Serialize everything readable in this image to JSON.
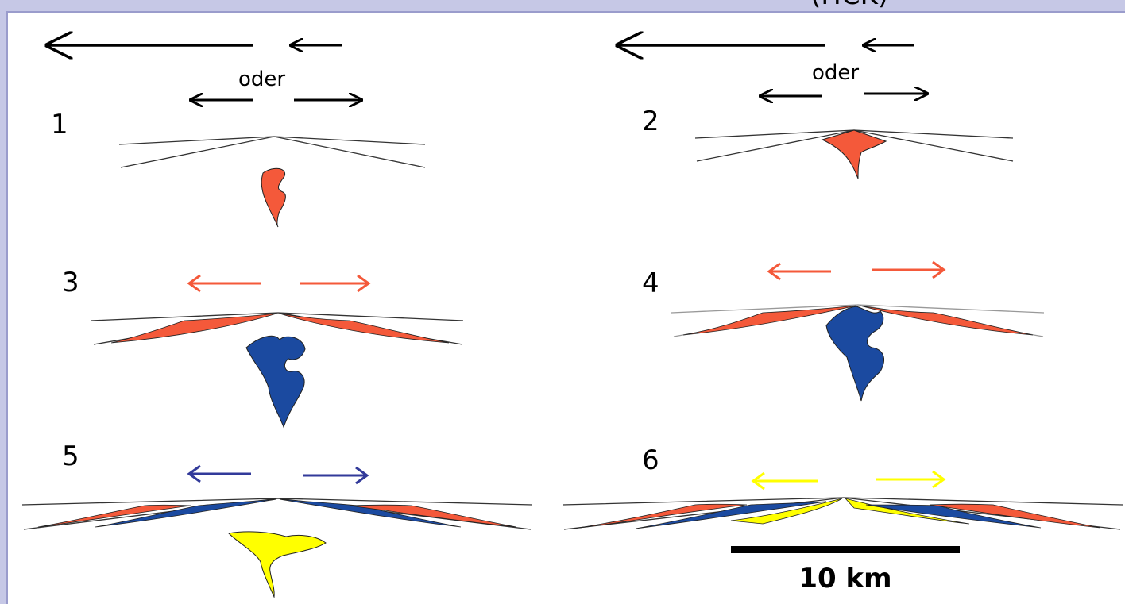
{
  "header_caption": "(HCK)",
  "labels": {
    "alternative_word_left": "oder",
    "alternative_word_right": "oder"
  },
  "stages": [
    {
      "number": "1",
      "magma_color": "red"
    },
    {
      "number": "2",
      "magma_color": "red"
    },
    {
      "number": "3",
      "magma_color": "blue"
    },
    {
      "number": "4",
      "magma_color": "blue"
    },
    {
      "number": "5",
      "magma_color": "yellow"
    },
    {
      "number": "6",
      "magma_color": "yellow"
    }
  ],
  "scale_bar": {
    "label": "10 km"
  },
  "colors": {
    "red": "#f4593a",
    "blue": "#1b4aa0",
    "yellow": "#ffff00",
    "arrow_red": "#f4593a",
    "arrow_blue": "#323a9a",
    "arrow_yellow": "#ffff00",
    "frame": "#c6c8e6"
  }
}
